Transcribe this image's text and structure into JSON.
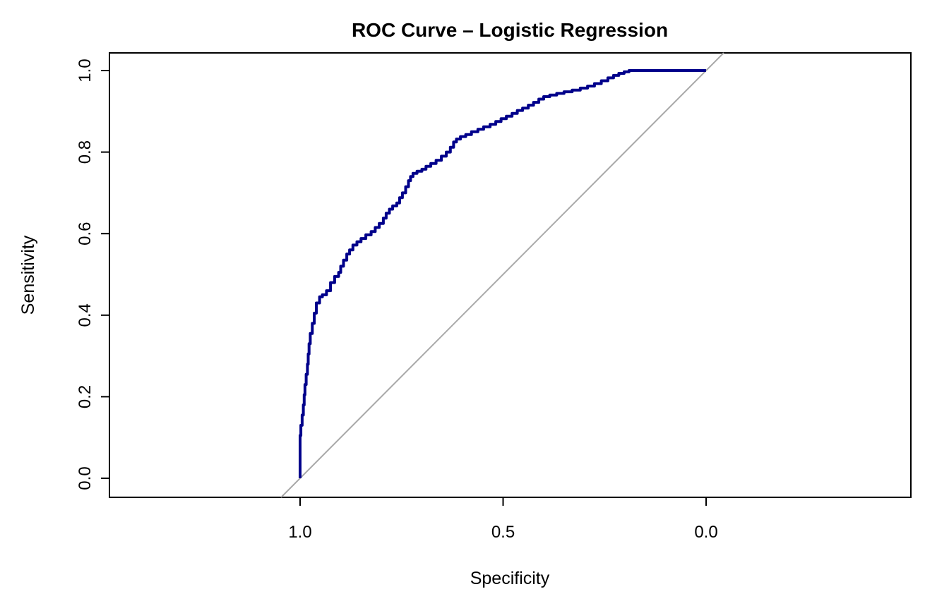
{
  "chart_data": {
    "type": "line",
    "title": "ROC Curve – Logistic Regression",
    "xlabel": "Specificity",
    "ylabel": "Sensitivity",
    "x_axis_reversed": true,
    "xlim": [
      1.0,
      0.0
    ],
    "ylim": [
      0.0,
      1.0
    ],
    "x_ticks": [
      1.0,
      0.5,
      0.0
    ],
    "x_tick_labels": [
      "1.0",
      "0.5",
      "0.0"
    ],
    "y_ticks": [
      0.0,
      0.2,
      0.4,
      0.6,
      0.8,
      1.0
    ],
    "y_tick_labels": [
      "0.0",
      "0.2",
      "0.4",
      "0.6",
      "0.8",
      "1.0"
    ],
    "grid": false,
    "legend": "none",
    "series": [
      {
        "name": "ROC curve",
        "style": "step",
        "color": "#00008B",
        "points": [
          [
            1.0,
            0.0
          ],
          [
            1.0,
            0.04
          ],
          [
            1.0,
            0.075
          ],
          [
            0.998,
            0.105
          ],
          [
            0.995,
            0.13
          ],
          [
            0.992,
            0.155
          ],
          [
            0.99,
            0.18
          ],
          [
            0.988,
            0.205
          ],
          [
            0.985,
            0.23
          ],
          [
            0.982,
            0.255
          ],
          [
            0.98,
            0.28
          ],
          [
            0.978,
            0.305
          ],
          [
            0.975,
            0.33
          ],
          [
            0.97,
            0.355
          ],
          [
            0.965,
            0.38
          ],
          [
            0.96,
            0.405
          ],
          [
            0.952,
            0.43
          ],
          [
            0.945,
            0.445
          ],
          [
            0.935,
            0.45
          ],
          [
            0.925,
            0.46
          ],
          [
            0.915,
            0.48
          ],
          [
            0.905,
            0.495
          ],
          [
            0.9,
            0.505
          ],
          [
            0.893,
            0.52
          ],
          [
            0.885,
            0.535
          ],
          [
            0.878,
            0.55
          ],
          [
            0.87,
            0.56
          ],
          [
            0.86,
            0.572
          ],
          [
            0.85,
            0.58
          ],
          [
            0.838,
            0.588
          ],
          [
            0.825,
            0.597
          ],
          [
            0.815,
            0.605
          ],
          [
            0.805,
            0.615
          ],
          [
            0.795,
            0.625
          ],
          [
            0.788,
            0.638
          ],
          [
            0.78,
            0.65
          ],
          [
            0.772,
            0.66
          ],
          [
            0.762,
            0.668
          ],
          [
            0.755,
            0.675
          ],
          [
            0.748,
            0.688
          ],
          [
            0.74,
            0.7
          ],
          [
            0.733,
            0.715
          ],
          [
            0.728,
            0.73
          ],
          [
            0.722,
            0.74
          ],
          [
            0.712,
            0.748
          ],
          [
            0.7,
            0.753
          ],
          [
            0.69,
            0.758
          ],
          [
            0.678,
            0.765
          ],
          [
            0.665,
            0.772
          ],
          [
            0.652,
            0.78
          ],
          [
            0.64,
            0.79
          ],
          [
            0.63,
            0.8
          ],
          [
            0.622,
            0.812
          ],
          [
            0.615,
            0.825
          ],
          [
            0.605,
            0.832
          ],
          [
            0.592,
            0.838
          ],
          [
            0.578,
            0.843
          ],
          [
            0.562,
            0.85
          ],
          [
            0.548,
            0.856
          ],
          [
            0.532,
            0.862
          ],
          [
            0.518,
            0.868
          ],
          [
            0.505,
            0.875
          ],
          [
            0.492,
            0.882
          ],
          [
            0.478,
            0.888
          ],
          [
            0.465,
            0.895
          ],
          [
            0.452,
            0.902
          ],
          [
            0.438,
            0.908
          ],
          [
            0.425,
            0.915
          ],
          [
            0.412,
            0.922
          ],
          [
            0.4,
            0.93
          ],
          [
            0.385,
            0.936
          ],
          [
            0.368,
            0.94
          ],
          [
            0.35,
            0.944
          ],
          [
            0.33,
            0.948
          ],
          [
            0.31,
            0.952
          ],
          [
            0.292,
            0.957
          ],
          [
            0.275,
            0.962
          ],
          [
            0.258,
            0.968
          ],
          [
            0.242,
            0.975
          ],
          [
            0.228,
            0.982
          ],
          [
            0.215,
            0.988
          ],
          [
            0.202,
            0.993
          ],
          [
            0.19,
            0.997
          ],
          [
            0.178,
            1.0
          ],
          [
            0.1,
            1.0
          ],
          [
            0.0,
            1.0
          ]
        ]
      },
      {
        "name": "Chance diagonal",
        "style": "straight",
        "color": "#A9A9A9",
        "points": [
          [
            1.0,
            0.0
          ],
          [
            0.0,
            1.0
          ]
        ]
      }
    ]
  }
}
